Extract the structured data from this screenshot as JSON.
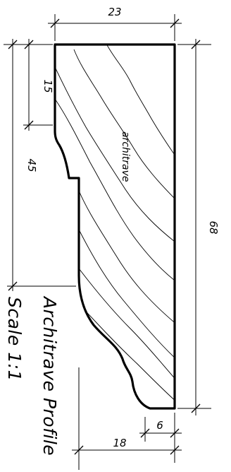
{
  "dimensions": {
    "top_width": "23",
    "top_part_height": "15",
    "left_height": "45",
    "total_height": "68",
    "bottom_width": "18",
    "bottom_step": "6"
  },
  "part_label": "architrave",
  "title": {
    "line1": "Architrave Profile",
    "line2": "Scale 1:1"
  }
}
